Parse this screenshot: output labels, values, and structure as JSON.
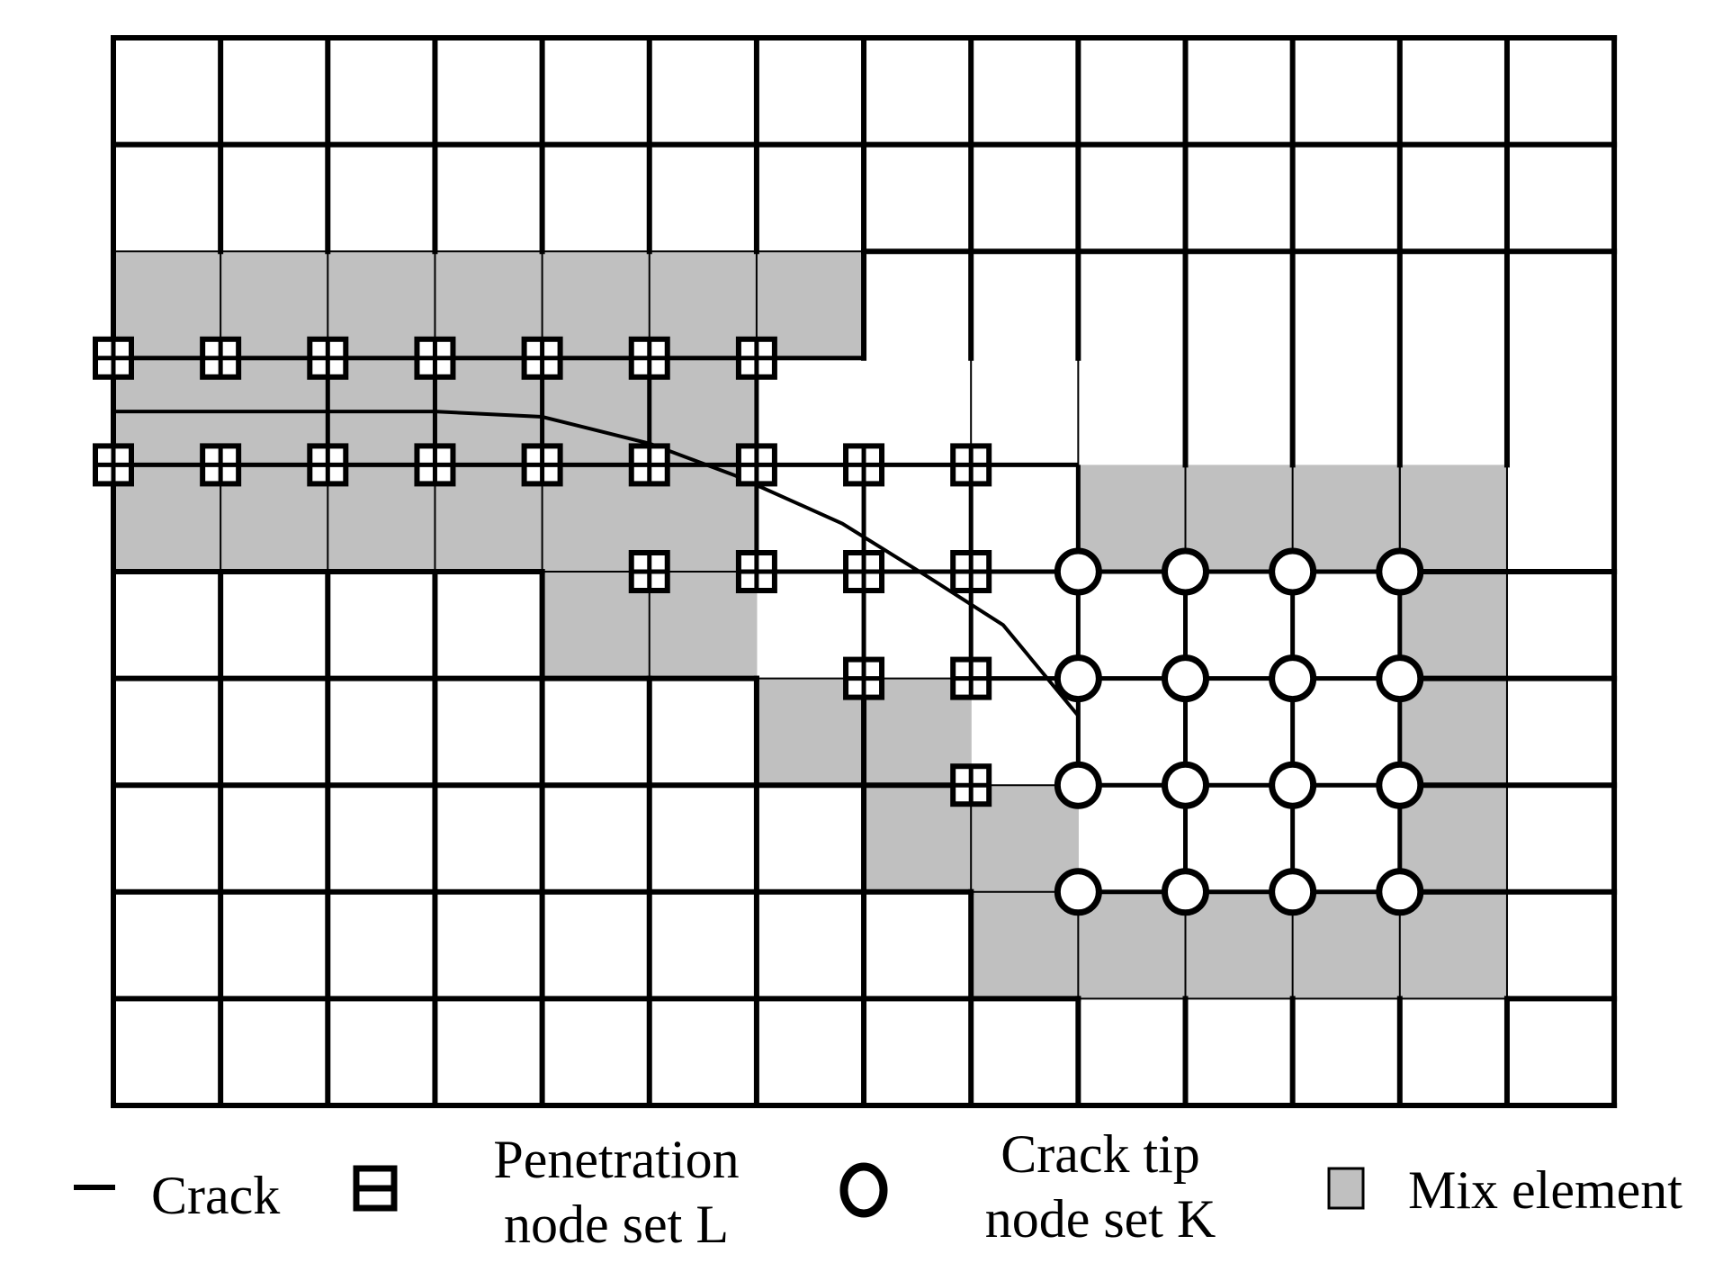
{
  "colors": {
    "background": "#ffffff",
    "grid_line": "#000000",
    "mix_element_fill": "#c0c0c0"
  },
  "mesh": {
    "columns": 14,
    "rows": 10,
    "mix_elements": [
      [
        2,
        0
      ],
      [
        2,
        1
      ],
      [
        2,
        2
      ],
      [
        2,
        3
      ],
      [
        2,
        4
      ],
      [
        2,
        5
      ],
      [
        2,
        6
      ],
      [
        3,
        0
      ],
      [
        3,
        1
      ],
      [
        3,
        2
      ],
      [
        3,
        3
      ],
      [
        3,
        4
      ],
      [
        3,
        5
      ],
      [
        3,
        6
      ],
      [
        3,
        7
      ],
      [
        3,
        8
      ],
      [
        4,
        0
      ],
      [
        4,
        1
      ],
      [
        4,
        2
      ],
      [
        4,
        3
      ],
      [
        4,
        4
      ],
      [
        4,
        5
      ],
      [
        4,
        6
      ],
      [
        4,
        7
      ],
      [
        4,
        8
      ],
      [
        4,
        9
      ],
      [
        4,
        10
      ],
      [
        4,
        11
      ],
      [
        4,
        12
      ],
      [
        5,
        4
      ],
      [
        5,
        5
      ],
      [
        5,
        6
      ],
      [
        5,
        7
      ],
      [
        5,
        8
      ],
      [
        5,
        9
      ],
      [
        5,
        10
      ],
      [
        5,
        11
      ],
      [
        5,
        12
      ],
      [
        6,
        6
      ],
      [
        6,
        7
      ],
      [
        6,
        8
      ],
      [
        6,
        9
      ],
      [
        6,
        10
      ],
      [
        6,
        11
      ],
      [
        6,
        12
      ],
      [
        7,
        7
      ],
      [
        7,
        8
      ],
      [
        7,
        9
      ],
      [
        7,
        10
      ],
      [
        7,
        11
      ],
      [
        7,
        12
      ],
      [
        8,
        8
      ],
      [
        8,
        9
      ],
      [
        8,
        10
      ],
      [
        8,
        11
      ],
      [
        8,
        12
      ]
    ],
    "white_elements": [
      [
        3,
        6
      ],
      [
        3,
        7
      ],
      [
        3,
        8
      ],
      [
        4,
        6
      ],
      [
        4,
        7
      ],
      [
        4,
        8
      ],
      [
        5,
        6
      ],
      [
        5,
        7
      ],
      [
        5,
        8
      ],
      [
        5,
        9
      ],
      [
        5,
        10
      ],
      [
        5,
        11
      ],
      [
        6,
        8
      ],
      [
        6,
        9
      ],
      [
        6,
        10
      ],
      [
        6,
        11
      ],
      [
        7,
        9
      ],
      [
        7,
        10
      ],
      [
        7,
        11
      ]
    ],
    "thin_interior_lines": [
      {
        "row": 2,
        "from_col": 0,
        "to_col": 7
      },
      {
        "row": 4,
        "from_col": 0,
        "to_col": 6
      },
      {
        "row": 5,
        "from_col": 4,
        "to_col": 6
      },
      {
        "row": 6,
        "from_col": 6,
        "to_col": 8
      },
      {
        "row": 7,
        "from_col": 8,
        "to_col": 9
      },
      {
        "row": 8,
        "from_col": 8,
        "to_col": 9
      },
      {
        "row": 9,
        "from_col": 9,
        "to_col": 13
      },
      {
        "col": 1,
        "from_row": 2,
        "to_row": 3
      },
      {
        "col": 2,
        "from_row": 2,
        "to_row": 3
      },
      {
        "col": 3,
        "from_row": 2,
        "to_row": 3
      },
      {
        "col": 4,
        "from_row": 2,
        "to_row": 3
      },
      {
        "col": 5,
        "from_row": 2,
        "to_row": 3
      },
      {
        "col": 6,
        "from_row": 2,
        "to_row": 3
      },
      {
        "col": 8,
        "from_row": 3,
        "to_row": 4
      },
      {
        "col": 9,
        "from_row": 3,
        "to_row": 5
      },
      {
        "col": 10,
        "from_row": 4,
        "to_row": 5
      },
      {
        "col": 11,
        "from_row": 4,
        "to_row": 5
      },
      {
        "col": 12,
        "from_row": 4,
        "to_row": 5
      },
      {
        "col": 1,
        "from_row": 4,
        "to_row": 5
      },
      {
        "col": 2,
        "from_row": 4,
        "to_row": 5
      },
      {
        "col": 3,
        "from_row": 4,
        "to_row": 5
      },
      {
        "col": 4,
        "from_row": 4,
        "to_row": 5
      },
      {
        "col": 5,
        "from_row": 5,
        "to_row": 6
      },
      {
        "col": 7,
        "from_row": 6,
        "to_row": 7
      },
      {
        "col": 8,
        "from_row": 7,
        "to_row": 8
      },
      {
        "col": 9,
        "from_row": 8,
        "to_row": 9
      },
      {
        "col": 10,
        "from_row": 8,
        "to_row": 9
      },
      {
        "col": 11,
        "from_row": 8,
        "to_row": 9
      },
      {
        "col": 12,
        "from_row": 4,
        "to_row": 9
      },
      {
        "col": 13,
        "from_row": 4,
        "to_row": 9
      }
    ],
    "thick_inner_edges": [
      {
        "row": 3,
        "from_col": 0,
        "to_col": 7
      },
      {
        "row": 4,
        "from_col": 0,
        "to_col": 9
      },
      {
        "row": 5,
        "from_col": 6,
        "to_col": 12
      },
      {
        "row": 6,
        "from_col": 8,
        "to_col": 12
      },
      {
        "row": 7,
        "from_col": 9,
        "to_col": 12
      },
      {
        "row": 8,
        "from_col": 9,
        "to_col": 12
      },
      {
        "col": 2,
        "from_row": 3,
        "to_row": 4
      },
      {
        "col": 3,
        "from_row": 3,
        "to_row": 4
      },
      {
        "col": 4,
        "from_row": 3,
        "to_row": 4
      },
      {
        "col": 5,
        "from_row": 3,
        "to_row": 4
      },
      {
        "col": 6,
        "from_row": 3,
        "to_row": 5
      },
      {
        "col": 7,
        "from_row": 4,
        "to_row": 6
      },
      {
        "col": 8,
        "from_row": 4,
        "to_row": 6
      },
      {
        "col": 9,
        "from_row": 4,
        "to_row": 7
      },
      {
        "col": 10,
        "from_row": 5,
        "to_row": 8
      },
      {
        "col": 11,
        "from_row": 5,
        "to_row": 8
      },
      {
        "col": 12,
        "from_row": 5,
        "to_row": 8
      }
    ],
    "penetration_nodes": [
      [
        3,
        0
      ],
      [
        3,
        1
      ],
      [
        3,
        2
      ],
      [
        3,
        3
      ],
      [
        3,
        4
      ],
      [
        3,
        5
      ],
      [
        3,
        6
      ],
      [
        4,
        0
      ],
      [
        4,
        1
      ],
      [
        4,
        2
      ],
      [
        4,
        3
      ],
      [
        4,
        4
      ],
      [
        4,
        5
      ],
      [
        4,
        6
      ],
      [
        4,
        7
      ],
      [
        4,
        8
      ],
      [
        5,
        5
      ],
      [
        5,
        6
      ],
      [
        5,
        7
      ],
      [
        5,
        8
      ],
      [
        6,
        7
      ],
      [
        6,
        8
      ],
      [
        7,
        8
      ]
    ],
    "crack_tip_nodes": [
      [
        5,
        9
      ],
      [
        5,
        10
      ],
      [
        5,
        11
      ],
      [
        5,
        12
      ],
      [
        6,
        9
      ],
      [
        6,
        10
      ],
      [
        6,
        11
      ],
      [
        6,
        12
      ],
      [
        7,
        9
      ],
      [
        7,
        10
      ],
      [
        7,
        11
      ],
      [
        7,
        12
      ],
      [
        8,
        9
      ],
      [
        8,
        10
      ],
      [
        8,
        11
      ],
      [
        8,
        12
      ]
    ],
    "crack_path": [
      [
        0.0,
        3.5
      ],
      [
        2.0,
        3.5
      ],
      [
        3.0,
        3.5
      ],
      [
        4.0,
        3.55
      ],
      [
        5.0,
        3.8
      ],
      [
        5.8,
        4.1
      ],
      [
        6.8,
        4.55
      ],
      [
        7.6,
        5.05
      ],
      [
        8.3,
        5.5
      ],
      [
        9.0,
        6.35
      ]
    ]
  },
  "legend": {
    "crack_label": "Crack",
    "penetration_label_line1": "Penetration",
    "penetration_label_line2": "node set L",
    "crack_tip_label_line1": "Crack tip",
    "crack_tip_label_line2": "node set K",
    "mix_element_label": "Mix element"
  }
}
